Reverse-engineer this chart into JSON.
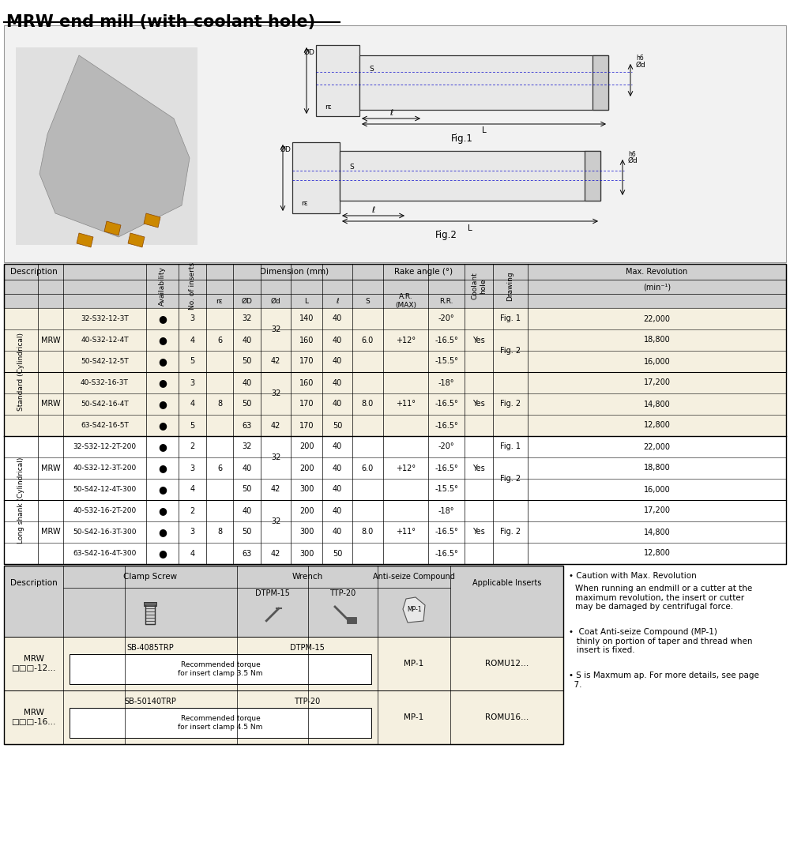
{
  "title": "MRW end mill (with coolant hole)",
  "bg_color": "#ffffff",
  "header_bg": "#d0d0d0",
  "row_bg_beige": "#f5f0e0",
  "row_bg_white": "#ffffff",
  "rows": [
    {
      "section": "Standard (Cylindrical)",
      "type": "MRW",
      "desc": "32-S32-12-3T",
      "avail": "●",
      "ins": "3",
      "re": "6",
      "OD": "32",
      "Od": "32",
      "L": "140",
      "l": "40",
      "S": "6.0",
      "AR": "+12°",
      "RR": "-20°",
      "coolant": "Yes",
      "drawing": "Fig. 1",
      "rpm": "22,000"
    },
    {
      "section": "Standard (Cylindrical)",
      "type": "",
      "desc": "40-S32-12-4T",
      "avail": "●",
      "ins": "4",
      "re": "",
      "OD": "40",
      "Od": "",
      "L": "160",
      "l": "40",
      "S": "",
      "AR": "",
      "RR": "-16.5°",
      "coolant": "",
      "drawing": "",
      "rpm": "18,800"
    },
    {
      "section": "Standard (Cylindrical)",
      "type": "",
      "desc": "50-S42-12-5T",
      "avail": "●",
      "ins": "5",
      "re": "",
      "OD": "50",
      "Od": "42",
      "L": "170",
      "l": "40",
      "S": "",
      "AR": "",
      "RR": "-15.5°",
      "coolant": "",
      "drawing": "",
      "rpm": "16,000"
    },
    {
      "section": "Standard (Cylindrical)",
      "type": "MRW",
      "desc": "40-S32-16-3T",
      "avail": "●",
      "ins": "3",
      "re": "8",
      "OD": "40",
      "Od": "32",
      "L": "160",
      "l": "40",
      "S": "8.0",
      "AR": "+11°",
      "RR": "-18°",
      "coolant": "Yes",
      "drawing": "Fig. 2",
      "rpm": "17,200"
    },
    {
      "section": "Standard (Cylindrical)",
      "type": "",
      "desc": "50-S42-16-4T",
      "avail": "●",
      "ins": "4",
      "re": "",
      "OD": "50",
      "Od": "",
      "L": "170",
      "l": "40",
      "S": "",
      "AR": "",
      "RR": "-16.5°",
      "coolant": "",
      "drawing": "",
      "rpm": "14,800"
    },
    {
      "section": "Standard (Cylindrical)",
      "type": "",
      "desc": "63-S42-16-5T",
      "avail": "●",
      "ins": "5",
      "re": "",
      "OD": "63",
      "Od": "42",
      "L": "170",
      "l": "50",
      "S": "",
      "AR": "",
      "RR": "-16.5°",
      "coolant": "",
      "drawing": "",
      "rpm": "12,800"
    },
    {
      "section": "Long shank (Cylindrical)",
      "type": "MRW",
      "desc": "32-S32-12-2T-200",
      "avail": "●",
      "ins": "2",
      "re": "6",
      "OD": "32",
      "Od": "32",
      "L": "200",
      "l": "40",
      "S": "6.0",
      "AR": "+12°",
      "RR": "-20°",
      "coolant": "Yes",
      "drawing": "Fig. 1",
      "rpm": "22,000"
    },
    {
      "section": "Long shank (Cylindrical)",
      "type": "",
      "desc": "40-S32-12-3T-200",
      "avail": "●",
      "ins": "3",
      "re": "",
      "OD": "40",
      "Od": "",
      "L": "200",
      "l": "40",
      "S": "",
      "AR": "",
      "RR": "-16.5°",
      "coolant": "",
      "drawing": "",
      "rpm": "18,800"
    },
    {
      "section": "Long shank (Cylindrical)",
      "type": "",
      "desc": "50-S42-12-4T-300",
      "avail": "●",
      "ins": "4",
      "re": "",
      "OD": "50",
      "Od": "42",
      "L": "300",
      "l": "40",
      "S": "",
      "AR": "",
      "RR": "-15.5°",
      "coolant": "",
      "drawing": "",
      "rpm": "16,000"
    },
    {
      "section": "Long shank (Cylindrical)",
      "type": "MRW",
      "desc": "40-S32-16-2T-200",
      "avail": "●",
      "ins": "2",
      "re": "8",
      "OD": "40",
      "Od": "32",
      "L": "200",
      "l": "40",
      "S": "8.0",
      "AR": "+11°",
      "RR": "-18°",
      "coolant": "Yes",
      "drawing": "Fig. 2",
      "rpm": "17,200"
    },
    {
      "section": "Long shank (Cylindrical)",
      "type": "",
      "desc": "50-S42-16-3T-300",
      "avail": "●",
      "ins": "3",
      "re": "",
      "OD": "50",
      "Od": "",
      "L": "300",
      "l": "40",
      "S": "",
      "AR": "",
      "RR": "-16.5°",
      "coolant": "",
      "drawing": "",
      "rpm": "14,800"
    },
    {
      "section": "Long shank (Cylindrical)",
      "type": "",
      "desc": "63-S42-16-4T-300",
      "avail": "●",
      "ins": "4",
      "re": "",
      "OD": "63",
      "Od": "42",
      "L": "300",
      "l": "50",
      "S": "",
      "AR": "",
      "RR": "-16.5°",
      "coolant": "",
      "drawing": "",
      "rpm": "12,800"
    }
  ],
  "notes": [
    "• Caution with Max. Revolution",
    "  When running an endmill or a cutter at the\n  maximum revolution, the insert or cutter\n  may be damaged by centrifugal force.",
    "•  Coat Anti-seize Compound (MP-1)\n  thinly on portion of taper and thread when\n  insert is fixed.",
    "• S is Maxmum ap. For more details, see page\n  7."
  ]
}
